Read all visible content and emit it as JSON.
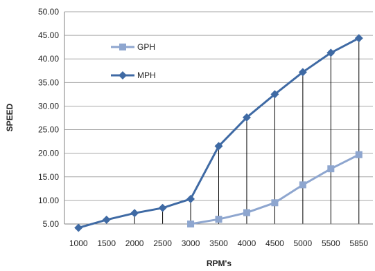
{
  "chart_data": {
    "type": "line",
    "xlabel": "RPM's",
    "ylabel": "SPEED",
    "categories": [
      "1000",
      "1500",
      "2000",
      "2500",
      "3000",
      "3500",
      "4000",
      "4500",
      "5000",
      "5500",
      "5850"
    ],
    "ylim": [
      5,
      50
    ],
    "yticks": [
      "5.00",
      "10.00",
      "15.00",
      "20.00",
      "25.00",
      "30.00",
      "35.00",
      "40.00",
      "45.00",
      "50.00"
    ],
    "grid": true,
    "drop_lines": true,
    "legend": "left",
    "series": [
      {
        "name": "GPH",
        "color": "#8ea6cf",
        "marker": "square",
        "values": [
          null,
          null,
          null,
          null,
          5.0,
          6.0,
          7.4,
          9.5,
          13.3,
          16.7,
          19.7
        ]
      },
      {
        "name": "MPH",
        "color": "#3f6aa4",
        "marker": "diamond",
        "values": [
          4.2,
          5.9,
          7.3,
          8.4,
          10.3,
          21.5,
          27.6,
          32.5,
          37.2,
          41.3,
          44.4
        ]
      }
    ]
  }
}
